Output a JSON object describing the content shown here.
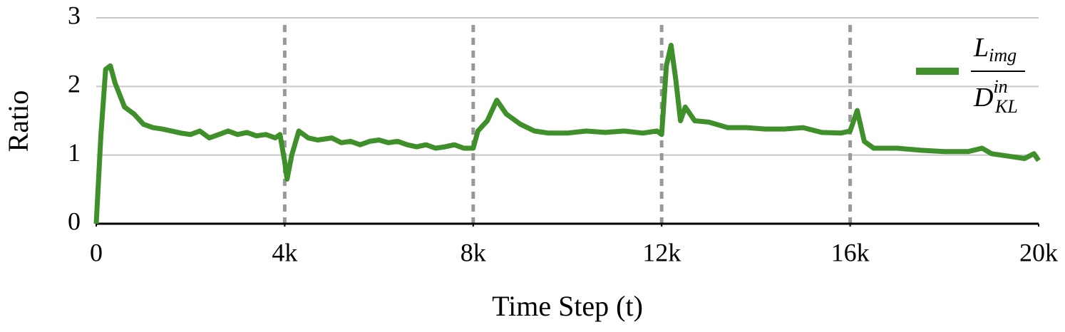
{
  "chart_data": {
    "type": "line",
    "xlabel": "Time Step (t)",
    "ylabel": "Ratio",
    "xlim": [
      0,
      20000
    ],
    "ylim": [
      0,
      3
    ],
    "xticks": [
      0,
      {
        "value": 4000,
        "label": "4k"
      },
      {
        "value": 8000,
        "label": "8k"
      },
      {
        "value": 12000,
        "label": "12k"
      },
      {
        "value": 16000,
        "label": "16k"
      },
      {
        "value": 20000,
        "label": "20k"
      }
    ],
    "yticks": [
      0,
      1,
      2,
      3
    ],
    "grid": true,
    "vlines": [
      4000,
      8000,
      12000,
      16000
    ],
    "legend": "upper right",
    "series": [
      {
        "name": {
          "numerator": {
            "base": "L",
            "sub": "img"
          },
          "denominator": {
            "base": "D",
            "sup": "in",
            "sub": "KL"
          }
        },
        "color": "#3f8f2a",
        "x": [
          0,
          100,
          200,
          300,
          400,
          600,
          800,
          1000,
          1200,
          1400,
          1600,
          1800,
          2000,
          2200,
          2400,
          2600,
          2800,
          3000,
          3200,
          3400,
          3600,
          3800,
          3900,
          4000,
          4050,
          4150,
          4300,
          4500,
          4700,
          5000,
          5200,
          5400,
          5600,
          5800,
          6000,
          6200,
          6400,
          6600,
          6800,
          7000,
          7200,
          7400,
          7600,
          7800,
          8000,
          8100,
          8300,
          8500,
          8700,
          9000,
          9300,
          9600,
          10000,
          10400,
          10800,
          11200,
          11600,
          11900,
          12000,
          12100,
          12200,
          12300,
          12400,
          12500,
          12700,
          13000,
          13400,
          13800,
          14200,
          14600,
          15000,
          15400,
          15800,
          16000,
          16150,
          16300,
          16500,
          17000,
          17500,
          18000,
          18500,
          18800,
          19000,
          19400,
          19700,
          19900,
          20000
        ],
        "values": [
          0,
          1.3,
          2.25,
          2.3,
          2.05,
          1.7,
          1.6,
          1.45,
          1.4,
          1.38,
          1.35,
          1.32,
          1.3,
          1.35,
          1.25,
          1.3,
          1.35,
          1.3,
          1.33,
          1.28,
          1.3,
          1.25,
          1.3,
          0.9,
          0.65,
          1.0,
          1.35,
          1.25,
          1.22,
          1.25,
          1.18,
          1.2,
          1.15,
          1.2,
          1.22,
          1.18,
          1.2,
          1.15,
          1.12,
          1.15,
          1.1,
          1.12,
          1.15,
          1.1,
          1.1,
          1.35,
          1.5,
          1.8,
          1.6,
          1.45,
          1.35,
          1.32,
          1.32,
          1.35,
          1.33,
          1.35,
          1.32,
          1.35,
          1.3,
          2.3,
          2.6,
          2.1,
          1.5,
          1.7,
          1.5,
          1.48,
          1.4,
          1.4,
          1.38,
          1.38,
          1.4,
          1.33,
          1.32,
          1.35,
          1.65,
          1.2,
          1.1,
          1.1,
          1.07,
          1.05,
          1.05,
          1.1,
          1.02,
          0.98,
          0.95,
          1.02,
          0.92
        ]
      }
    ]
  }
}
